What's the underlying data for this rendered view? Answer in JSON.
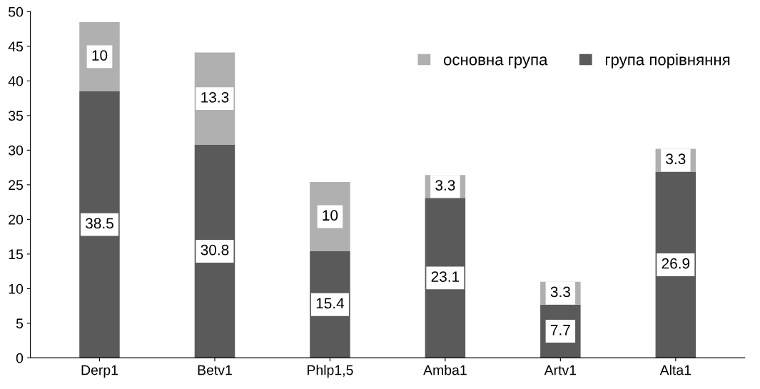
{
  "chart_data": {
    "type": "bar",
    "stacked": true,
    "categories": [
      "Derp1",
      "Betv1",
      "Phlp1,5",
      "Amba1",
      "Artv1",
      "Alta1"
    ],
    "series": [
      {
        "name": "група порівняння",
        "color": "#5a5a5a",
        "values": [
          38.5,
          30.8,
          15.4,
          23.1,
          7.7,
          26.9
        ]
      },
      {
        "name": "основна група",
        "color": "#b0b0b0",
        "values": [
          10,
          13.3,
          10,
          3.3,
          3.3,
          3.3
        ]
      }
    ],
    "ylim": [
      0,
      50
    ],
    "yticks": [
      0,
      5,
      10,
      15,
      20,
      25,
      30,
      35,
      40,
      45,
      50
    ],
    "data_labels": true,
    "grid": false,
    "legend": "top right"
  }
}
